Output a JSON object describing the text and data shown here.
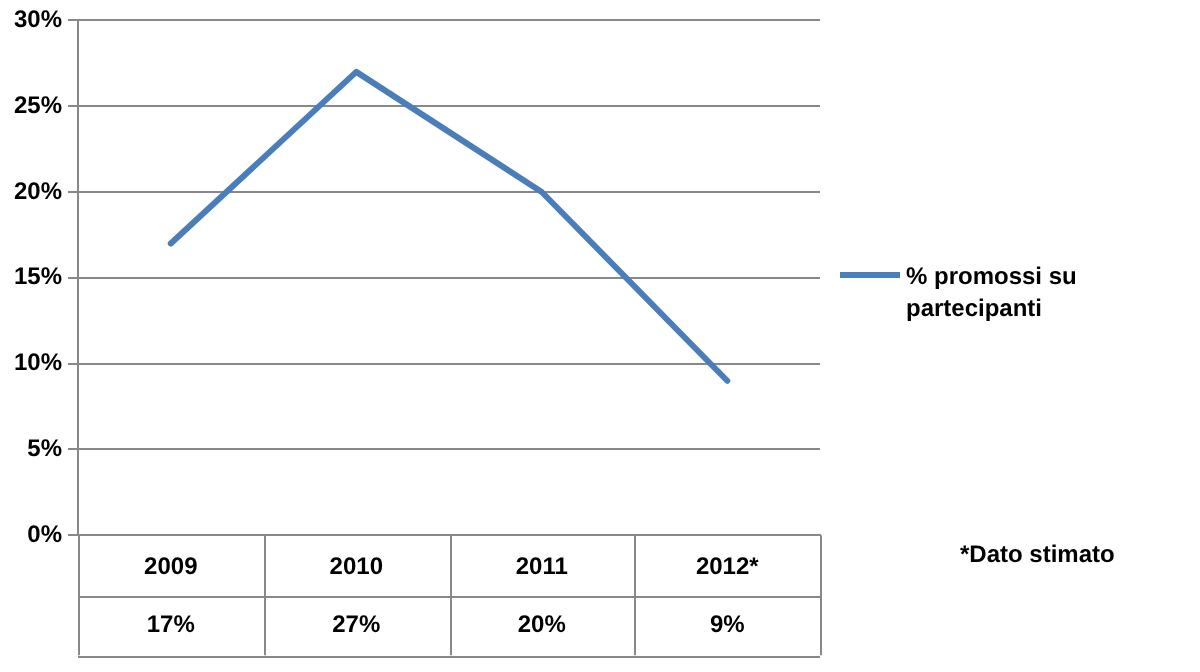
{
  "chart_data": {
    "type": "line",
    "categories": [
      "2009",
      "2010",
      "2011",
      "2012*"
    ],
    "series": [
      {
        "name": "% promossi su partecipanti",
        "color": "#4a7ebb",
        "values": [
          17,
          27,
          20,
          9
        ]
      }
    ],
    "ylim": [
      0,
      30
    ],
    "yticks": [
      {
        "value": 0,
        "label": "0%"
      },
      {
        "value": 5,
        "label": "5%"
      },
      {
        "value": 10,
        "label": "10%"
      },
      {
        "value": 15,
        "label": "15%"
      },
      {
        "value": 20,
        "label": "20%"
      },
      {
        "value": 25,
        "label": "25%"
      },
      {
        "value": 30,
        "label": "30%"
      }
    ],
    "value_labels": [
      "17%",
      "27%",
      "20%",
      "9%"
    ],
    "grid": "y",
    "legend": "right",
    "marker": "none",
    "line_style": "solid",
    "annotations": [
      "*Dato stimato"
    ]
  }
}
